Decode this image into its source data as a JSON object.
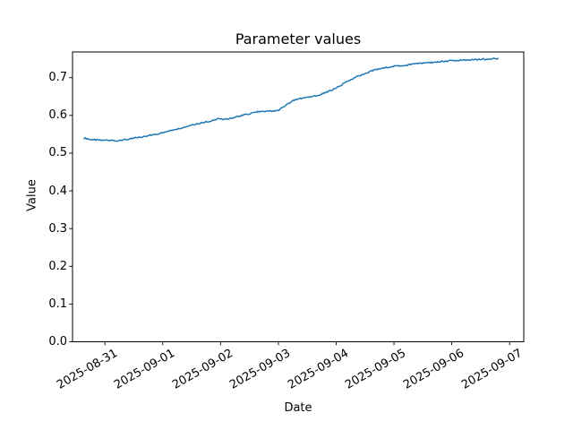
{
  "figure": {
    "title": "Parameter values",
    "x_axis": {
      "label": "Date",
      "tick_labels": [
        "2025-08-31",
        "2025-09-01",
        "2025-09-02",
        "2025-09-03",
        "2025-09-04",
        "2025-09-05",
        "2025-09-06",
        "2025-09-07"
      ]
    },
    "y_axis": {
      "label": "Value",
      "tick_labels": [
        "0.0",
        "0.1",
        "0.2",
        "0.3",
        "0.4",
        "0.5",
        "0.6",
        "0.7"
      ]
    }
  },
  "chart_data": {
    "type": "line",
    "title": "Parameter values",
    "xlabel": "Date",
    "ylabel": "Value",
    "x_origin_date": "2025-08-31",
    "x_tick_labels": [
      "2025-08-31",
      "2025-09-01",
      "2025-09-02",
      "2025-09-03",
      "2025-09-04",
      "2025-09-05",
      "2025-09-06",
      "2025-09-07"
    ],
    "y_ticks": [
      0.0,
      0.1,
      0.2,
      0.3,
      0.4,
      0.5,
      0.6,
      0.7
    ],
    "ylim": [
      0.0,
      0.768
    ],
    "xlim_days_offset": [
      -0.56,
      7.25
    ],
    "grid": false,
    "legend": false,
    "background_color": "#ffffff",
    "line_color": "#1f77b4",
    "noise_amplitude": 0.0018,
    "series": [
      {
        "name": "Parameter values",
        "x_days": [
          -0.36,
          -0.26,
          -0.14,
          0.0,
          0.12,
          0.25,
          0.37,
          0.51,
          0.63,
          0.76,
          0.88,
          1.01,
          1.13,
          1.25,
          1.38,
          1.5,
          1.63,
          1.75,
          1.9,
          1.97,
          2.06,
          2.15,
          2.25,
          2.37,
          2.49,
          2.61,
          2.68,
          2.8,
          2.92,
          3.0,
          3.11,
          3.25,
          3.38,
          3.5,
          3.61,
          3.76,
          3.89,
          4.0,
          4.12,
          4.23,
          4.35,
          4.46,
          4.58,
          4.69,
          4.85,
          5.0,
          5.23,
          5.47,
          5.7,
          5.99,
          6.24,
          6.55,
          6.8
        ],
        "values": [
          0.54,
          0.537,
          0.535,
          0.534,
          0.533,
          0.533,
          0.536,
          0.54,
          0.543,
          0.547,
          0.55,
          0.554,
          0.559,
          0.564,
          0.569,
          0.574,
          0.578,
          0.583,
          0.588,
          0.592,
          0.589,
          0.592,
          0.595,
          0.6,
          0.604,
          0.608,
          0.611,
          0.612,
          0.612,
          0.614,
          0.625,
          0.64,
          0.645,
          0.648,
          0.65,
          0.657,
          0.665,
          0.672,
          0.684,
          0.693,
          0.702,
          0.709,
          0.716,
          0.721,
          0.726,
          0.73,
          0.734,
          0.738,
          0.741,
          0.745,
          0.747,
          0.749,
          0.751
        ]
      }
    ]
  }
}
